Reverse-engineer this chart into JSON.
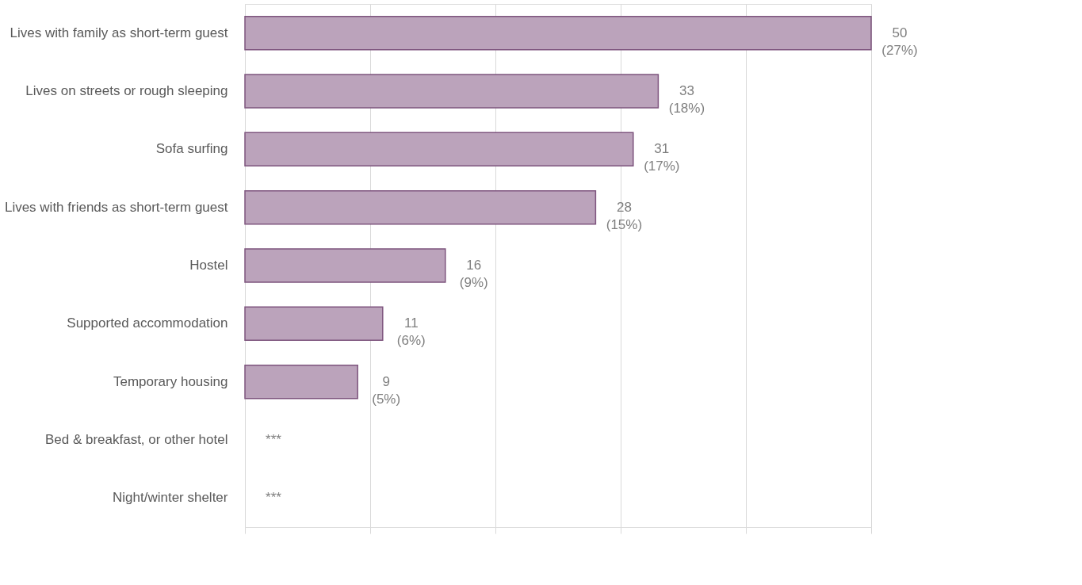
{
  "chart_data": {
    "type": "bar",
    "orientation": "horizontal",
    "categories": [
      "Lives with family as short-term guest",
      "Lives on streets or rough sleeping",
      "Sofa surfing ",
      "Lives with friends as short-term guest",
      "Hostel",
      "Supported accommodation",
      "Temporary housing",
      "Bed & breakfast, or other hotel",
      "Night/winter shelter"
    ],
    "values": [
      50,
      33,
      31,
      28,
      16,
      11,
      9,
      null,
      null
    ],
    "value_labels": [
      "50\n(27%)",
      "33\n(18%)",
      "31\n(17%)",
      "28\n(15%)",
      "16\n(9%)",
      "11\n(6%)",
      "9\n(5%)",
      "***",
      "***"
    ],
    "color": "#bba3bb",
    "xlim": [
      0,
      50
    ],
    "xticks": [
      {
        "value": 0,
        "label": null
      },
      {
        "value": 10,
        "label": null
      },
      {
        "value": 20,
        "label": null
      },
      {
        "value": 30,
        "label": null
      },
      {
        "value": 40,
        "label": null
      },
      {
        "value": 50,
        "label": null
      }
    ],
    "tick_labels": "y",
    "grid": "x"
  }
}
